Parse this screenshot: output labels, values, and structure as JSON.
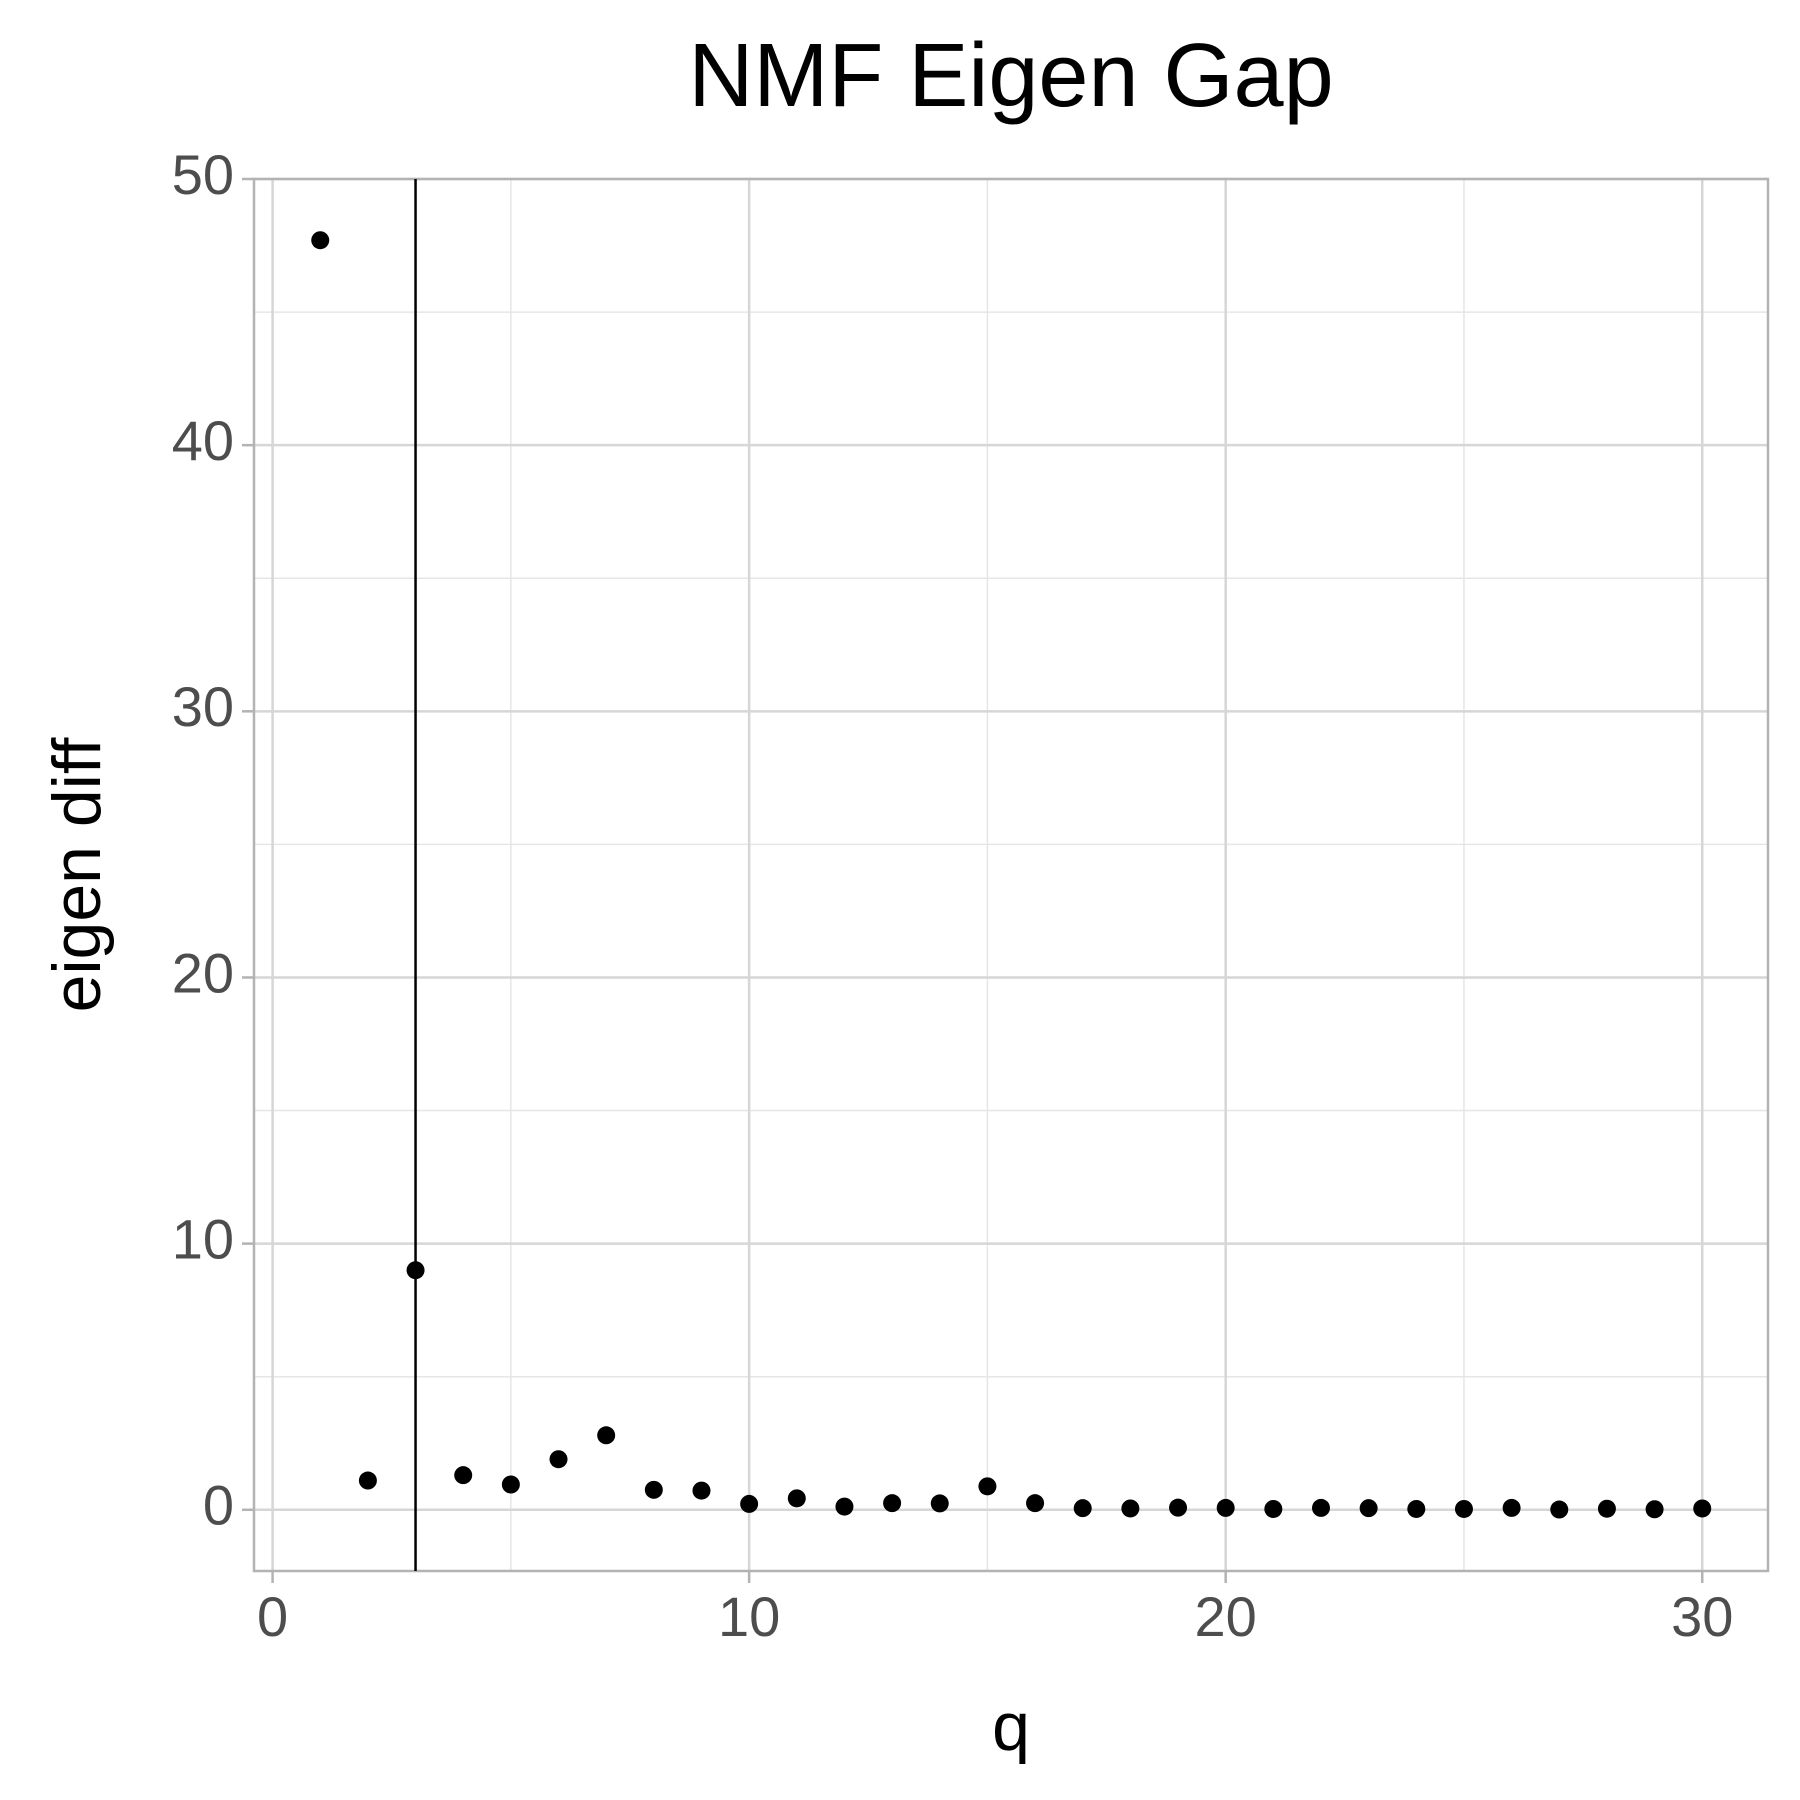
{
  "chart_data": {
    "type": "scatter",
    "title": "NMF Eigen Gap",
    "x_label": "q",
    "y_label": "eigen diff",
    "x": [
      1,
      2,
      3,
      4,
      5,
      6,
      7,
      8,
      9,
      10,
      11,
      12,
      13,
      14,
      15,
      16,
      17,
      18,
      19,
      20,
      21,
      22,
      23,
      24,
      25,
      26,
      27,
      28,
      29,
      30
    ],
    "values": [
      47.7,
      1.1,
      9.0,
      1.3,
      0.95,
      1.9,
      2.8,
      0.75,
      0.72,
      0.22,
      0.43,
      0.12,
      0.25,
      0.24,
      0.88,
      0.25,
      0.06,
      0.05,
      0.08,
      0.07,
      0.03,
      0.07,
      0.06,
      0.03,
      0.03,
      0.07,
      0.01,
      0.04,
      0.02,
      0.05
    ],
    "color": "#000000",
    "vline": 3,
    "xlim": [
      -0.39,
      31.38
    ],
    "ylim": [
      -2.3,
      50
    ],
    "xticks": [
      0,
      10,
      20,
      30
    ],
    "yticks": [
      0,
      10,
      20,
      30,
      40,
      50
    ],
    "x_minor_grid": [
      5,
      15,
      25
    ],
    "y_minor_grid": [
      5,
      15,
      25,
      35,
      45
    ],
    "grid": true
  }
}
